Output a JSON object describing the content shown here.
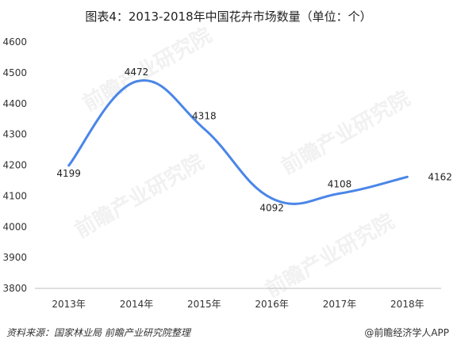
{
  "title": "图表4：2013-2018年中国花卉市场数量（单位：个）",
  "chart_data": {
    "type": "line",
    "title": "图表4：2013-2018年中国花卉市场数量（单位：个）",
    "categories": [
      "2013年",
      "2014年",
      "2015年",
      "2016年",
      "2017年",
      "2018年"
    ],
    "series": [
      {
        "values": [
          4199,
          4472,
          4318,
          4092,
          4108,
          4162
        ]
      }
    ],
    "ylim": [
      3800,
      4600
    ],
    "yticks": [
      3800,
      3900,
      4000,
      4100,
      4200,
      4300,
      4400,
      4500,
      4600
    ],
    "ytick_labels": [
      "3800",
      "3900",
      "4000",
      "4100",
      "4200",
      "4300",
      "4400",
      "4500",
      "4600"
    ],
    "grid": false,
    "line_color": "#4a86e8"
  },
  "footer": {
    "source": "资料来源：国家林业局 前瞻产业研究院整理",
    "brand": "@前瞻经济学人APP"
  },
  "watermark": "前瞻产业研究院"
}
